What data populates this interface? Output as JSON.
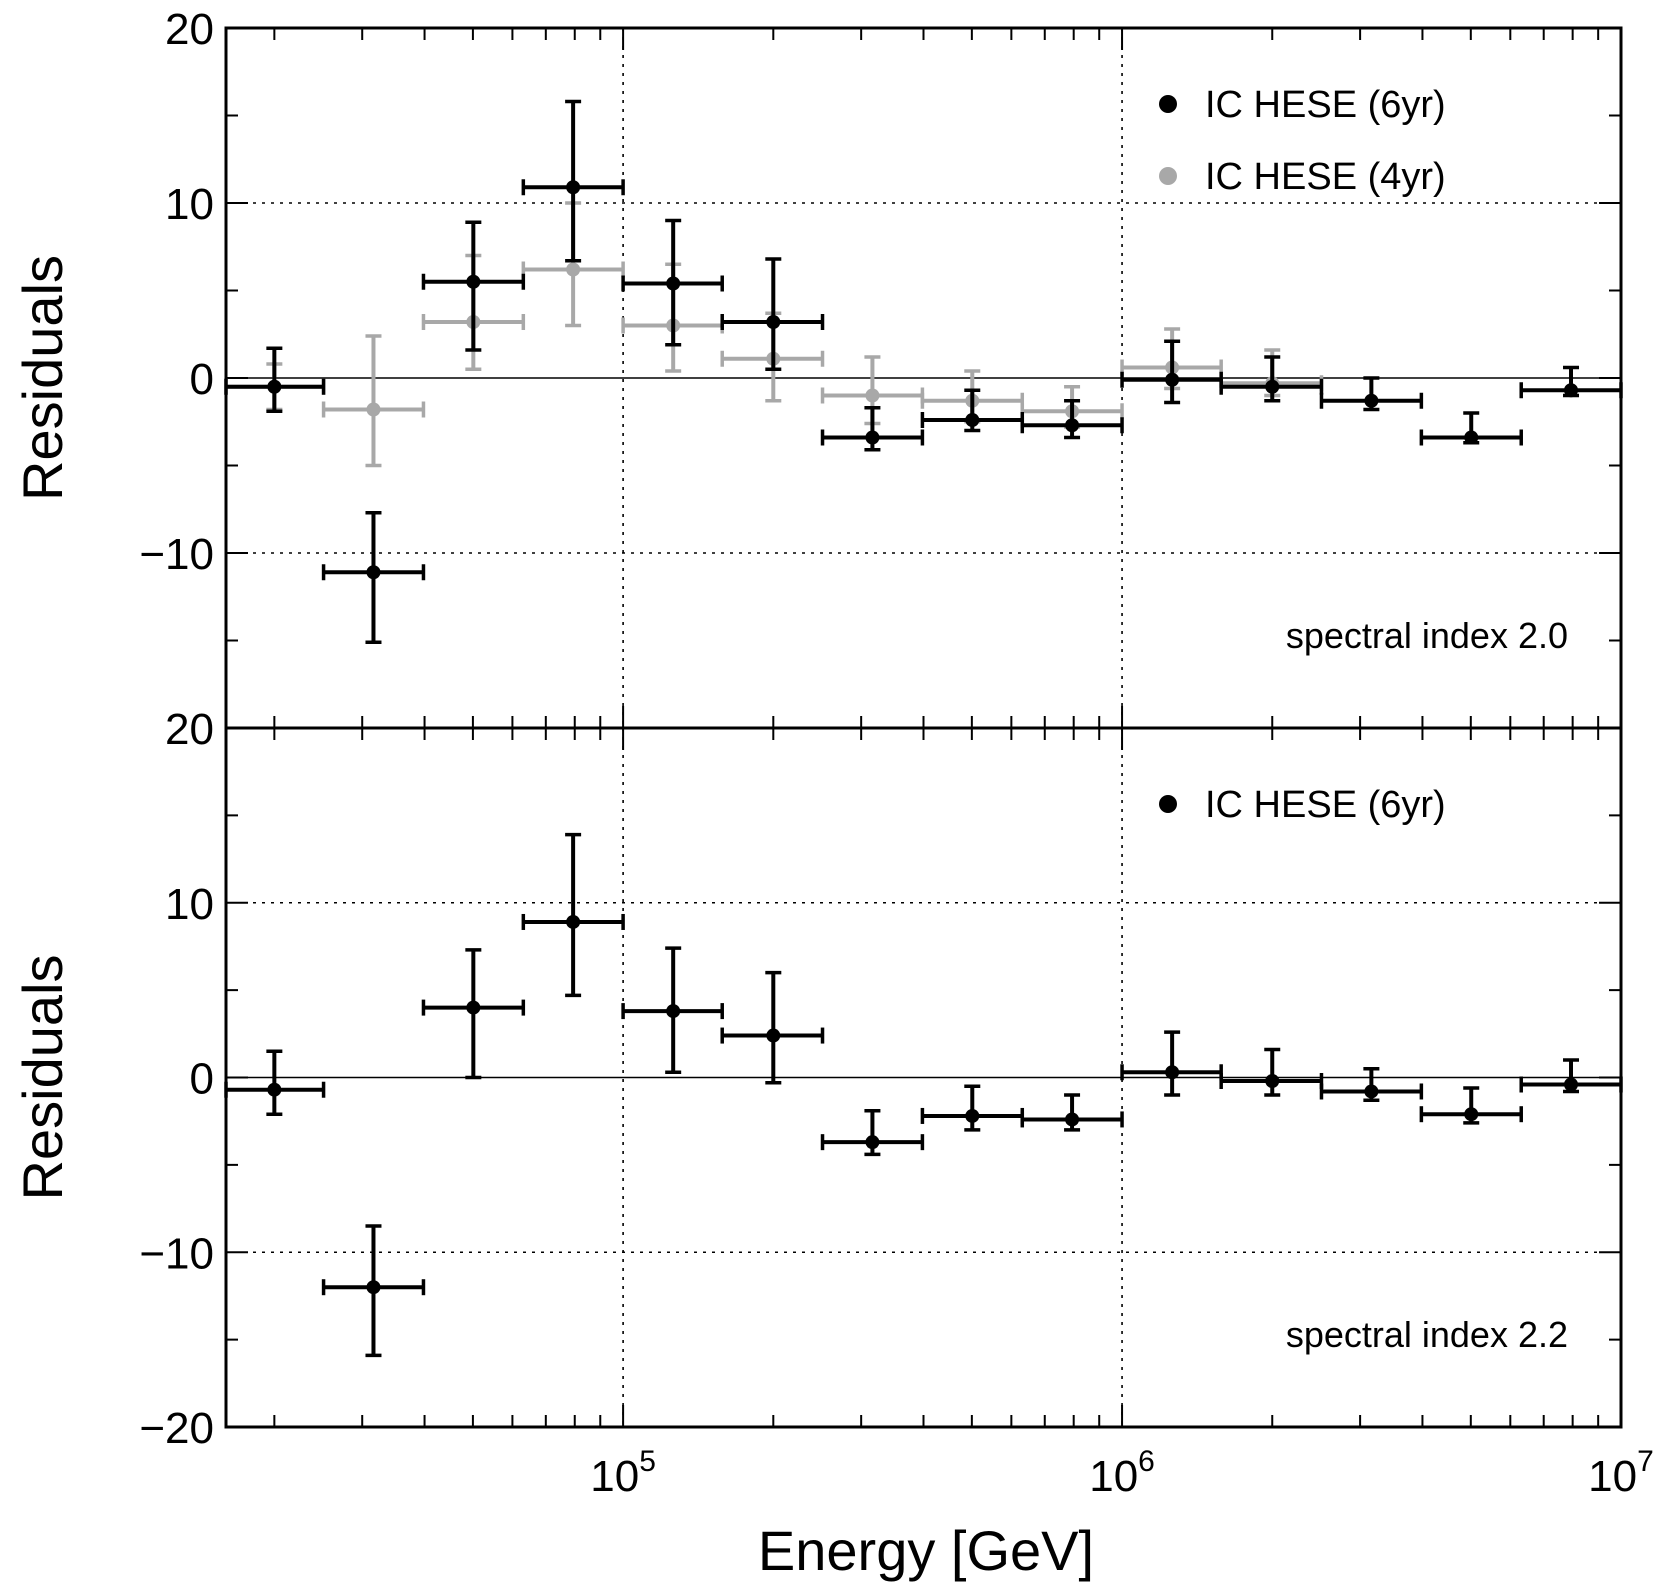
{
  "colors": {
    "series_6yr": "#000000",
    "series_4yr": "#a8a8a8",
    "axes": "#000000",
    "grid": "#000000",
    "background": "#ffffff"
  },
  "chart_data": [
    {
      "type": "scatter",
      "panel": "top",
      "ylabel": "Residuals",
      "xlabel": "",
      "xscale": "log",
      "xlim": [
        16000,
        10000000
      ],
      "ylim": [
        -20,
        20
      ],
      "ytick_values": [
        20,
        10,
        0,
        -10
      ],
      "ytick_labels": [
        "20",
        "10",
        "0",
        "−10"
      ],
      "xgrid_values": [
        100000,
        1000000
      ],
      "ygrid_values": [
        10,
        -10
      ],
      "zero_line": 0,
      "annotation": "spectral index 2.0",
      "legend": {
        "placement": "top-right",
        "entries": [
          {
            "label": "IC HESE (6yr)",
            "series": "6yr"
          },
          {
            "label": "IC HESE (4yr)",
            "series": "4yr"
          }
        ]
      },
      "series": [
        {
          "name": "IC HESE (4yr)",
          "key": "4yr",
          "points": [
            {
              "x": 20000,
              "xlo": 16000,
              "xhi": 25100,
              "y": -0.5,
              "ylo": -1.8,
              "yhi": 0.8
            },
            {
              "x": 31600,
              "xlo": 25100,
              "xhi": 39800,
              "y": -1.8,
              "ylo": -5.0,
              "yhi": 2.4
            },
            {
              "x": 50100,
              "xlo": 39800,
              "xhi": 63100,
              "y": 3.2,
              "ylo": 0.5,
              "yhi": 7.0
            },
            {
              "x": 79400,
              "xlo": 63100,
              "xhi": 100000,
              "y": 6.2,
              "ylo": 3.0,
              "yhi": 10.0
            },
            {
              "x": 126000,
              "xlo": 100000,
              "xhi": 158000,
              "y": 3.0,
              "ylo": 0.4,
              "yhi": 6.5
            },
            {
              "x": 200000,
              "xlo": 158000,
              "xhi": 251000,
              "y": 1.1,
              "ylo": -1.3,
              "yhi": 3.7
            },
            {
              "x": 316000,
              "xlo": 251000,
              "xhi": 398000,
              "y": -1.0,
              "ylo": -2.6,
              "yhi": 1.2
            },
            {
              "x": 501000,
              "xlo": 398000,
              "xhi": 631000,
              "y": -1.3,
              "ylo": -2.5,
              "yhi": 0.4
            },
            {
              "x": 794000,
              "xlo": 631000,
              "xhi": 1000000,
              "y": -1.9,
              "ylo": -2.8,
              "yhi": -0.5
            },
            {
              "x": 1260000,
              "xlo": 1000000,
              "xhi": 1580000,
              "y": 0.6,
              "ylo": -0.6,
              "yhi": 2.8
            },
            {
              "x": 2000000,
              "xlo": 1580000,
              "xhi": 2510000,
              "y": -0.3,
              "ylo": -1.0,
              "yhi": 1.6
            }
          ]
        },
        {
          "name": "IC HESE (6yr)",
          "key": "6yr",
          "points": [
            {
              "x": 20000,
              "xlo": 16000,
              "xhi": 25100,
              "y": -0.5,
              "ylo": -1.9,
              "yhi": 1.7
            },
            {
              "x": 31600,
              "xlo": 25100,
              "xhi": 39800,
              "y": -11.1,
              "ylo": -15.1,
              "yhi": -7.7
            },
            {
              "x": 50100,
              "xlo": 39800,
              "xhi": 63100,
              "y": 5.5,
              "ylo": 1.6,
              "yhi": 8.9
            },
            {
              "x": 79400,
              "xlo": 63100,
              "xhi": 100000,
              "y": 10.9,
              "ylo": 6.7,
              "yhi": 15.8
            },
            {
              "x": 126000,
              "xlo": 100000,
              "xhi": 158000,
              "y": 5.4,
              "ylo": 1.9,
              "yhi": 9.0
            },
            {
              "x": 200000,
              "xlo": 158000,
              "xhi": 251000,
              "y": 3.2,
              "ylo": 0.5,
              "yhi": 6.8
            },
            {
              "x": 316000,
              "xlo": 251000,
              "xhi": 398000,
              "y": -3.4,
              "ylo": -4.1,
              "yhi": -1.7
            },
            {
              "x": 501000,
              "xlo": 398000,
              "xhi": 631000,
              "y": -2.4,
              "ylo": -3.0,
              "yhi": -0.7
            },
            {
              "x": 794000,
              "xlo": 631000,
              "xhi": 1000000,
              "y": -2.7,
              "ylo": -3.4,
              "yhi": -1.3
            },
            {
              "x": 1260000,
              "xlo": 1000000,
              "xhi": 1580000,
              "y": -0.1,
              "ylo": -1.4,
              "yhi": 2.1
            },
            {
              "x": 2000000,
              "xlo": 1580000,
              "xhi": 2510000,
              "y": -0.5,
              "ylo": -1.3,
              "yhi": 1.2
            },
            {
              "x": 3160000,
              "xlo": 2510000,
              "xhi": 3980000,
              "y": -1.3,
              "ylo": -1.8,
              "yhi": 0.0
            },
            {
              "x": 5010000,
              "xlo": 3980000,
              "xhi": 6310000,
              "y": -3.4,
              "ylo": -3.7,
              "yhi": -2.0
            },
            {
              "x": 7940000,
              "xlo": 6310000,
              "xhi": 10000000,
              "y": -0.7,
              "ylo": -1.0,
              "yhi": 0.6
            }
          ]
        }
      ]
    },
    {
      "type": "scatter",
      "panel": "bottom",
      "ylabel": "Residuals",
      "xlabel": "Energy [GeV]",
      "xscale": "log",
      "xlim": [
        16000,
        10000000
      ],
      "ylim": [
        -20,
        20
      ],
      "ytick_values": [
        20,
        10,
        0,
        -10,
        -20
      ],
      "ytick_labels": [
        "20",
        "10",
        "0",
        "−10",
        "−20"
      ],
      "xtick_values": [
        100000,
        1000000,
        10000000
      ],
      "xtick_labels": [
        {
          "base": "10",
          "exp": "5"
        },
        {
          "base": "10",
          "exp": "6"
        },
        {
          "base": "10",
          "exp": "7"
        }
      ],
      "xgrid_values": [
        100000,
        1000000
      ],
      "ygrid_values": [
        10,
        -10
      ],
      "zero_line": 0,
      "annotation": "spectral index 2.2",
      "legend": {
        "placement": "top-right",
        "entries": [
          {
            "label": "IC HESE (6yr)",
            "series": "6yr"
          }
        ]
      },
      "series": [
        {
          "name": "IC HESE (6yr)",
          "key": "6yr",
          "points": [
            {
              "x": 20000,
              "xlo": 16000,
              "xhi": 25100,
              "y": -0.7,
              "ylo": -2.1,
              "yhi": 1.5
            },
            {
              "x": 31600,
              "xlo": 25100,
              "xhi": 39800,
              "y": -12.0,
              "ylo": -15.9,
              "yhi": -8.5
            },
            {
              "x": 50100,
              "xlo": 39800,
              "xhi": 63100,
              "y": 4.0,
              "ylo": 0.0,
              "yhi": 7.3
            },
            {
              "x": 79400,
              "xlo": 63100,
              "xhi": 100000,
              "y": 8.9,
              "ylo": 4.7,
              "yhi": 13.9
            },
            {
              "x": 126000,
              "xlo": 100000,
              "xhi": 158000,
              "y": 3.8,
              "ylo": 0.3,
              "yhi": 7.4
            },
            {
              "x": 200000,
              "xlo": 158000,
              "xhi": 251000,
              "y": 2.4,
              "ylo": -0.3,
              "yhi": 6.0
            },
            {
              "x": 316000,
              "xlo": 251000,
              "xhi": 398000,
              "y": -3.7,
              "ylo": -4.4,
              "yhi": -1.9
            },
            {
              "x": 501000,
              "xlo": 398000,
              "xhi": 631000,
              "y": -2.2,
              "ylo": -3.0,
              "yhi": -0.5
            },
            {
              "x": 794000,
              "xlo": 631000,
              "xhi": 1000000,
              "y": -2.4,
              "ylo": -3.0,
              "yhi": -1.0
            },
            {
              "x": 1260000,
              "xlo": 1000000,
              "xhi": 1580000,
              "y": 0.3,
              "ylo": -1.0,
              "yhi": 2.6
            },
            {
              "x": 2000000,
              "xlo": 1580000,
              "xhi": 2510000,
              "y": -0.2,
              "ylo": -1.0,
              "yhi": 1.6
            },
            {
              "x": 3160000,
              "xlo": 2510000,
              "xhi": 3980000,
              "y": -0.8,
              "ylo": -1.3,
              "yhi": 0.5
            },
            {
              "x": 5010000,
              "xlo": 3980000,
              "xhi": 6310000,
              "y": -2.1,
              "ylo": -2.6,
              "yhi": -0.6
            },
            {
              "x": 7940000,
              "xlo": 6310000,
              "xhi": 10000000,
              "y": -0.4,
              "ylo": -0.8,
              "yhi": 1.0
            }
          ]
        }
      ]
    }
  ]
}
